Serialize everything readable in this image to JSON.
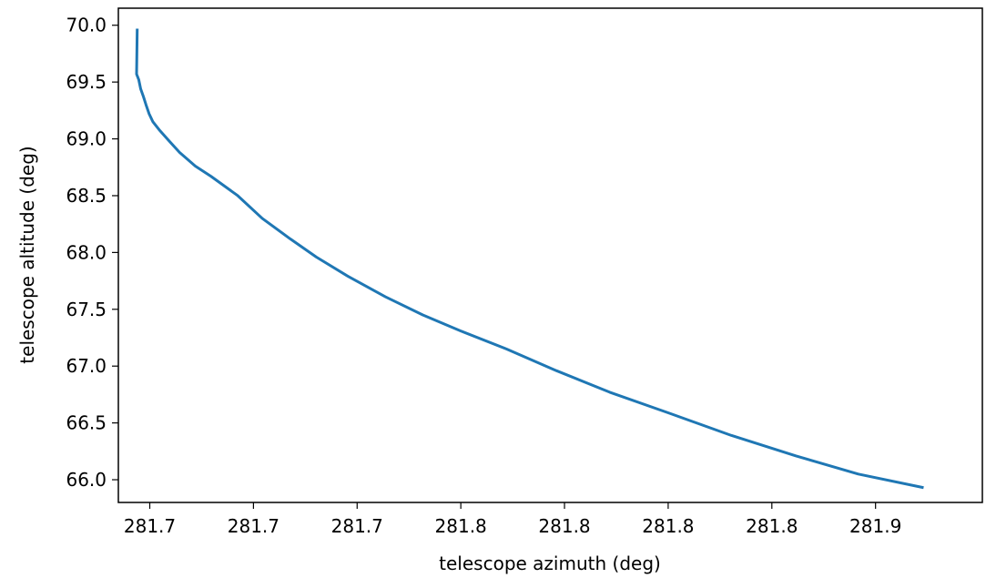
{
  "chart_data": {
    "type": "line",
    "title": "",
    "xlabel": "telescope azimuth (deg)",
    "ylabel": "telescope altitude (deg)",
    "xlim": [
      281.675,
      281.95
    ],
    "ylim": [
      65.8,
      70.15
    ],
    "grid": false,
    "x_ticks": [
      {
        "value": 281.685,
        "label": "281.7"
      },
      {
        "value": 281.718,
        "label": "281.7"
      },
      {
        "value": 281.751,
        "label": "281.7"
      },
      {
        "value": 281.784,
        "label": "281.8"
      },
      {
        "value": 281.817,
        "label": "281.8"
      },
      {
        "value": 281.85,
        "label": "281.8"
      },
      {
        "value": 281.883,
        "label": "281.8"
      },
      {
        "value": 281.916,
        "label": "281.9"
      }
    ],
    "y_ticks": [
      {
        "value": 66.0,
        "label": "66.0"
      },
      {
        "value": 66.5,
        "label": "66.5"
      },
      {
        "value": 67.0,
        "label": "67.0"
      },
      {
        "value": 67.5,
        "label": "67.5"
      },
      {
        "value": 68.0,
        "label": "68.0"
      },
      {
        "value": 68.5,
        "label": "68.5"
      },
      {
        "value": 69.0,
        "label": "69.0"
      },
      {
        "value": 69.5,
        "label": "69.5"
      },
      {
        "value": 70.0,
        "label": "70.0"
      }
    ],
    "series": [
      {
        "color": "#1f77b4",
        "x": [
          281.681,
          281.6808,
          281.6815,
          281.6821,
          281.683,
          281.6838,
          281.6848,
          281.686,
          281.688,
          281.6912,
          281.6945,
          281.6995,
          281.7045,
          281.713,
          281.7208,
          281.7297,
          281.738,
          281.7481,
          281.76,
          281.7719,
          281.7839,
          281.7986,
          281.8144,
          281.8314,
          281.8499,
          281.8701,
          281.8906,
          281.9105,
          281.9313
        ],
        "y": [
          69.97,
          69.57,
          69.52,
          69.44,
          69.37,
          69.3,
          69.22,
          69.15,
          69.08,
          68.98,
          68.88,
          68.76,
          68.67,
          68.5,
          68.3,
          68.12,
          67.96,
          67.79,
          67.61,
          67.45,
          67.31,
          67.15,
          66.96,
          66.77,
          66.59,
          66.39,
          66.21,
          66.05,
          65.93
        ]
      }
    ]
  }
}
